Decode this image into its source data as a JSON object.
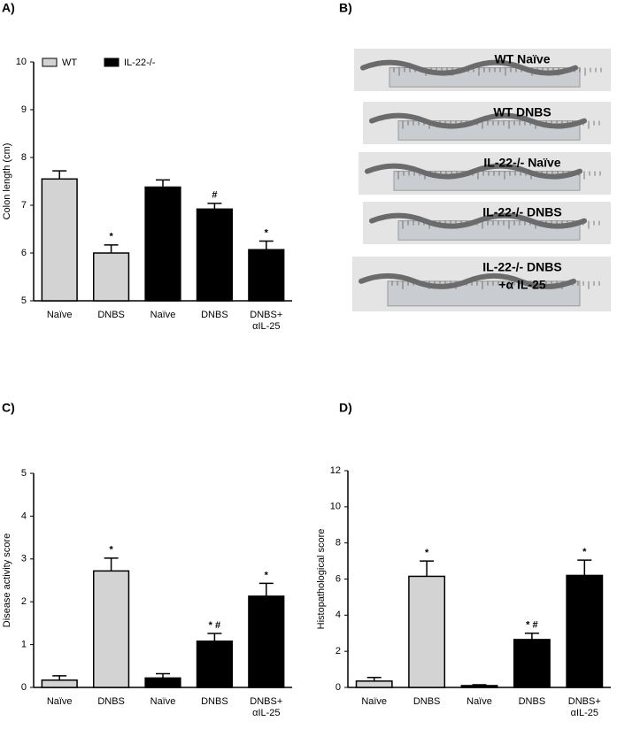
{
  "panel_labels": [
    "A)",
    "B)",
    "C)",
    "D)"
  ],
  "photo": {
    "labels": [
      [
        "WT Naïve"
      ],
      [
        "WT DNBS"
      ],
      [
        "IL-22-/- Naïve"
      ],
      [
        "IL-22-/- DNBS"
      ],
      [
        "IL-22-/- DNBS",
        "+α IL-25"
      ]
    ]
  },
  "chart_data": [
    {
      "type": "bar",
      "y_label": "Colon length (cm)",
      "categories": [
        "Naïve",
        "DNBS",
        "Naïve",
        "DNBS",
        [
          "DNBS+",
          "αIL-25"
        ]
      ],
      "series": [
        {
          "name": "WT",
          "color": "#d3d3d3",
          "values": [
            7.55,
            6.0,
            null,
            null,
            null
          ],
          "errors": [
            0.17,
            0.17,
            null,
            null,
            null
          ]
        },
        {
          "name": "IL-22-/-",
          "color": "#000000",
          "values": [
            null,
            null,
            7.38,
            6.92,
            6.07
          ],
          "errors": [
            null,
            null,
            0.15,
            0.12,
            0.18
          ]
        }
      ],
      "annotations": [
        null,
        "*",
        null,
        "#",
        "*"
      ],
      "ylim": [
        5,
        10
      ],
      "yticks": [
        5,
        6,
        7,
        8,
        9,
        10
      ],
      "legend": "top-left"
    },
    {
      "type": "bar",
      "y_label": "Disease activity score",
      "categories": [
        "Naïve",
        "DNBS",
        "Naïve",
        "DNBS",
        [
          "DNBS+",
          "αIL-25"
        ]
      ],
      "series": [
        {
          "name": "WT",
          "color": "#d3d3d3",
          "values": [
            0.17,
            2.72,
            null,
            null,
            null
          ],
          "errors": [
            0.1,
            0.3,
            null,
            null,
            null
          ]
        },
        {
          "name": "IL-22-/-",
          "color": "#000000",
          "values": [
            null,
            null,
            0.22,
            1.08,
            2.13
          ],
          "errors": [
            null,
            null,
            0.1,
            0.18,
            0.3
          ]
        }
      ],
      "annotations": [
        null,
        "*",
        null,
        "* #",
        "*"
      ],
      "ylim": [
        0,
        5
      ],
      "yticks": [
        0,
        1,
        2,
        3,
        4,
        5
      ]
    },
    {
      "type": "bar",
      "y_label": "Histopathological score",
      "categories": [
        "Naïve",
        "DNBS",
        "Naïve",
        "DNBS",
        [
          "DNBS+",
          "αIL-25"
        ]
      ],
      "series": [
        {
          "name": "WT",
          "color": "#d3d3d3",
          "values": [
            0.35,
            6.15,
            null,
            null,
            null
          ],
          "errors": [
            0.2,
            0.85,
            null,
            null,
            null
          ]
        },
        {
          "name": "IL-22-/-",
          "color": "#000000",
          "values": [
            null,
            null,
            0.1,
            2.65,
            6.2
          ],
          "errors": [
            null,
            null,
            0.05,
            0.35,
            0.85
          ]
        }
      ],
      "annotations": [
        null,
        "*",
        null,
        "* #",
        "*"
      ],
      "ylim": [
        0,
        12
      ],
      "yticks": [
        0,
        2,
        4,
        6,
        8,
        10,
        12
      ]
    }
  ]
}
